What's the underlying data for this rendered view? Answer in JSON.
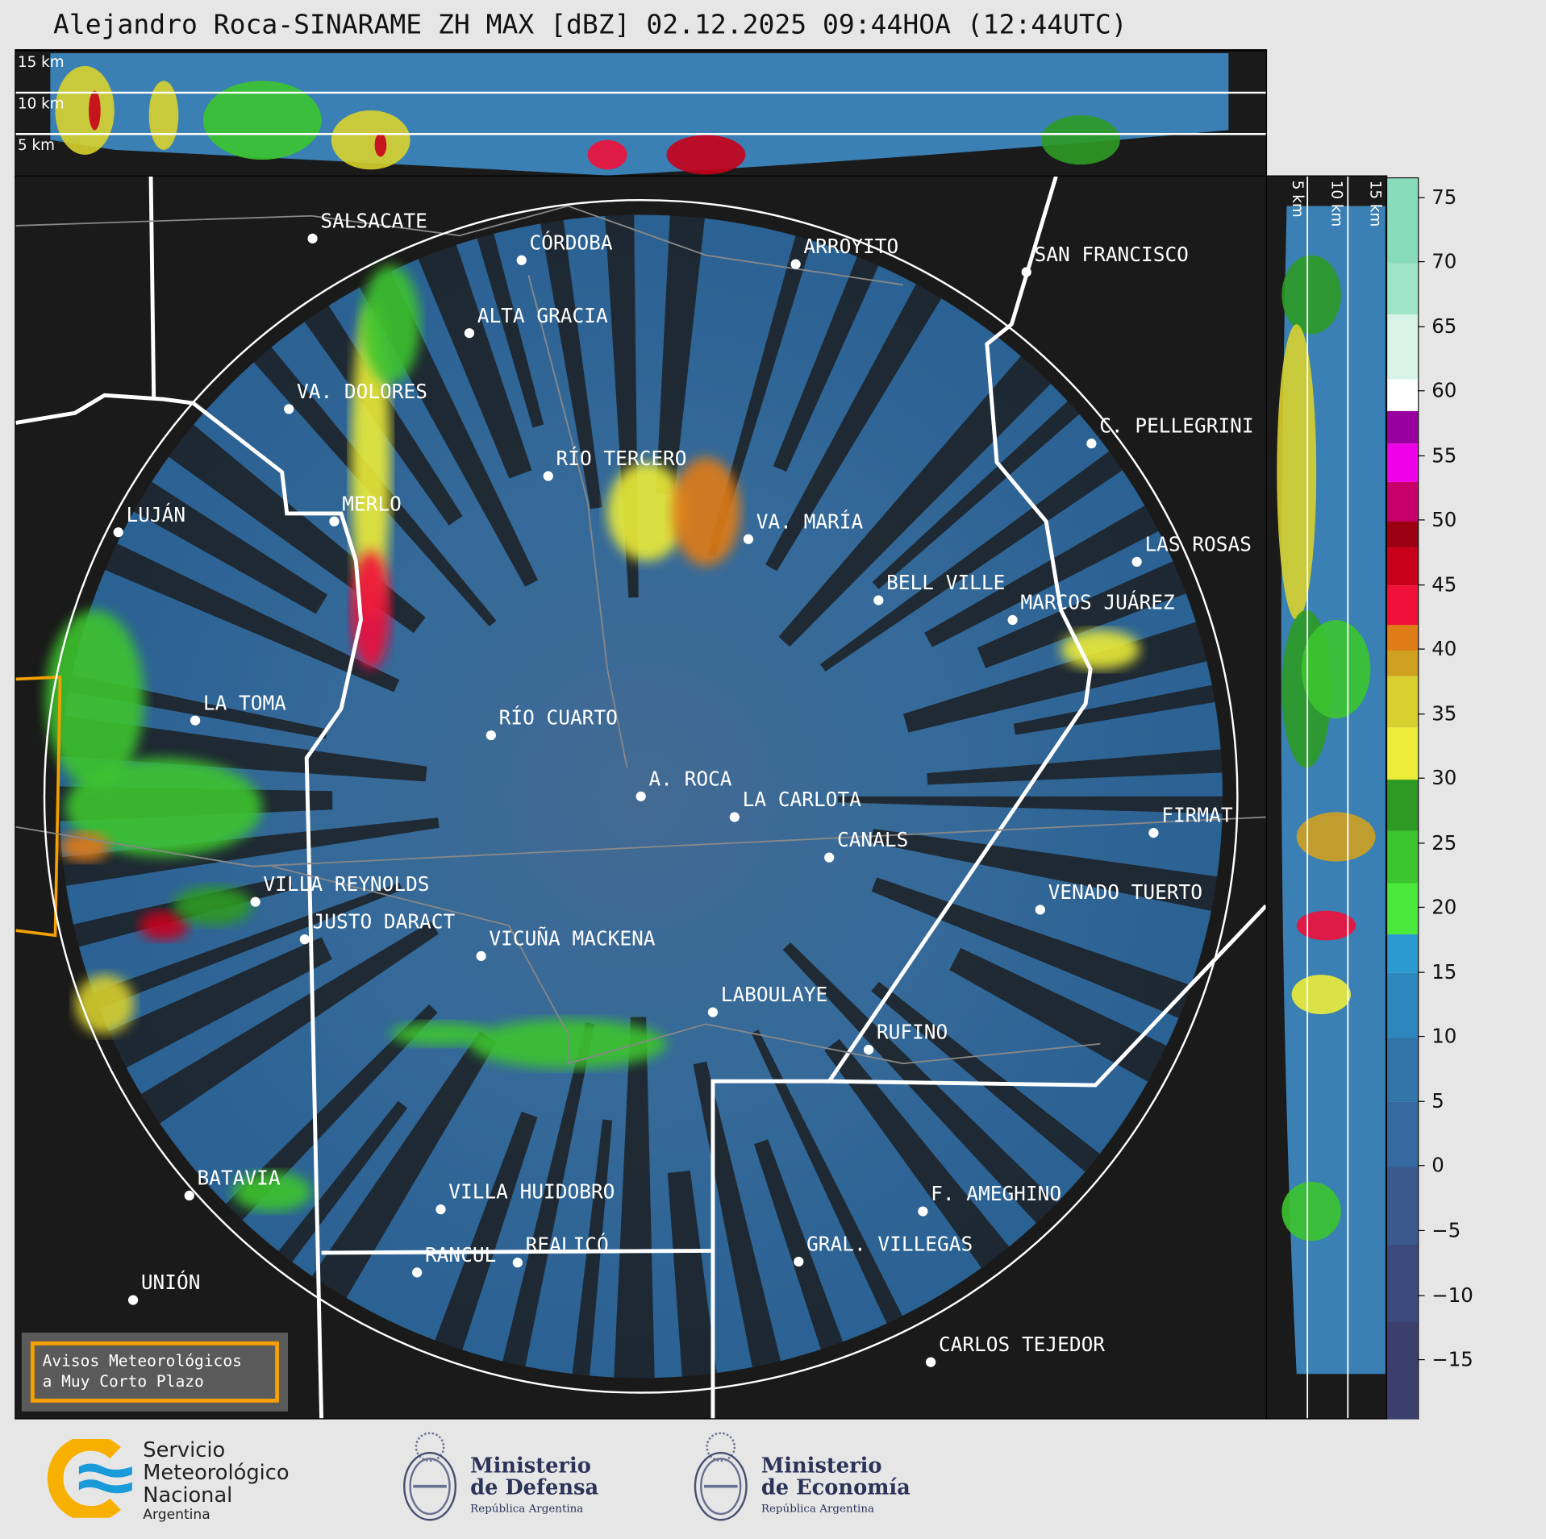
{
  "title": "Alejandro Roca-SINARAME ZH MAX [dBZ] 02.12.2025 09:44HOA (12:44UTC)",
  "top_panel": {
    "labels": [
      "15 km",
      "10 km",
      "5 km"
    ]
  },
  "side_panel": {
    "labels": [
      "5 km",
      "10 km",
      "15 km"
    ]
  },
  "radar": {
    "name": "A. ROCA"
  },
  "cities": [
    "SALSACATE",
    "CÓRDOBA",
    "ARROYITO",
    "SAN FRANCISCO",
    "ALTA GRACIA",
    "VA. DOLORES",
    "C. PELLEGRINI",
    "RÍO TERCERO",
    "MERLO",
    "LUJÁN",
    "VA. MARÍA",
    "LAS ROSAS",
    "BELL VILLE",
    "MARCOS JUÁREZ",
    "LA TOMA",
    "RÍO CUARTO",
    "LA CARLOTA",
    "CANALS",
    "FIRMAT",
    "VILLA REYNOLDS",
    "VENADO TUERTO",
    "JUSTO DARACT",
    "VICUÑA MACKENA",
    "LABOULAYE",
    "RUFINO",
    "BATAVIA",
    "VILLA HUIDOBRO",
    "F. AMEGHINO",
    "RANCUL",
    "REALICÓ",
    "GRAL. VILLEGAS",
    "UNIÓN",
    "CARLOS TEJEDOR"
  ],
  "colorbar": {
    "unit": "dBZ",
    "ticks": [
      "75",
      "70",
      "65",
      "60",
      "55",
      "50",
      "45",
      "40",
      "35",
      "30",
      "25",
      "20",
      "15",
      "10",
      "5",
      "0",
      "−5",
      "−10",
      "−15"
    ],
    "tick_values": [
      75,
      70,
      65,
      60,
      55,
      50,
      45,
      40,
      35,
      30,
      25,
      20,
      15,
      10,
      5,
      0,
      -5,
      -10,
      -15
    ],
    "range": [
      -19.5,
      76.5
    ],
    "stops": [
      [
        -19.5,
        "#3c3f6e"
      ],
      [
        -12,
        "#3d4a7e"
      ],
      [
        -6,
        "#3a5a8e"
      ],
      [
        0,
        "#35689e"
      ],
      [
        5,
        "#3274a8"
      ],
      [
        10,
        "#2e86be"
      ],
      [
        15,
        "#2a9ad0"
      ],
      [
        18,
        "#4ae83a"
      ],
      [
        22,
        "#3cc42e"
      ],
      [
        26,
        "#2e9a24"
      ],
      [
        30,
        "#ecec38"
      ],
      [
        34,
        "#d8d02e"
      ],
      [
        38,
        "#d0a020"
      ],
      [
        40,
        "#e07c18"
      ],
      [
        42,
        "#f0103a"
      ],
      [
        45,
        "#c8001a"
      ],
      [
        48,
        "#9a0010"
      ],
      [
        50,
        "#c8006a"
      ],
      [
        53,
        "#f000e8"
      ],
      [
        56,
        "#9a00a0"
      ],
      [
        58.5,
        "#ffffff"
      ],
      [
        61,
        "#d8f4e8"
      ],
      [
        66,
        "#a0e4c8"
      ],
      [
        70,
        "#88dcbc"
      ]
    ]
  },
  "notice": {
    "line1": "Avisos Meteorológicos",
    "line2": "a Muy Corto Plazo"
  },
  "logos": {
    "smn": [
      "Servicio",
      "Meteorológico",
      "Nacional",
      "Argentina"
    ],
    "defensa": [
      "Ministerio",
      "de Defensa",
      "República Argentina"
    ],
    "economia": [
      "Ministerio",
      "de Economía",
      "República Argentina"
    ]
  }
}
